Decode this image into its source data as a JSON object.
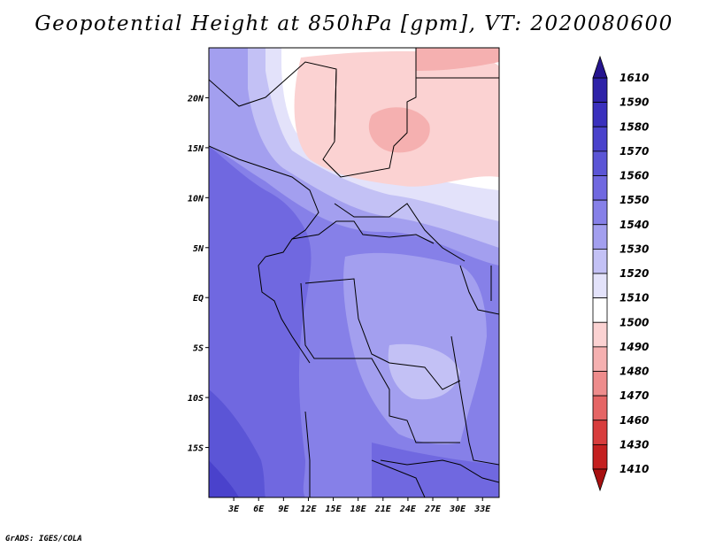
{
  "title": "Geopotential Height at 850hPa [gpm], VT: 2020080600",
  "credit": "GrADS: IGES/COLA",
  "map": {
    "lon_range": [
      0,
      35
    ],
    "lat_range": [
      -20,
      25
    ],
    "lat_ticks": [
      "20N",
      "15N",
      "10N",
      "5N",
      "EQ",
      "5S",
      "10S",
      "15S"
    ],
    "lat_tick_values": [
      20,
      15,
      10,
      5,
      0,
      -5,
      -10,
      -15
    ],
    "lon_ticks": [
      "3E",
      "6E",
      "9E",
      "12E",
      "15E",
      "18E",
      "21E",
      "24E",
      "27E",
      "30E",
      "33E"
    ],
    "lon_tick_values": [
      3,
      6,
      9,
      12,
      15,
      18,
      21,
      24,
      27,
      30,
      33
    ]
  },
  "colorbar": {
    "labels": [
      "1610",
      "1590",
      "1580",
      "1570",
      "1560",
      "1550",
      "1540",
      "1530",
      "1520",
      "1510",
      "1500",
      "1490",
      "1480",
      "1470",
      "1460",
      "1430",
      "1410"
    ],
    "colors": [
      "#26158f",
      "#2e22a8",
      "#3a30bd",
      "#4a42cc",
      "#5b55d6",
      "#7068e0",
      "#8680e8",
      "#a39fef",
      "#c3c1f5",
      "#e3e2fa",
      "#ffffff",
      "#fbd2d2",
      "#f5b0b0",
      "#ee8c8c",
      "#e56565",
      "#d83d3d",
      "#c42020",
      "#a81010"
    ]
  }
}
